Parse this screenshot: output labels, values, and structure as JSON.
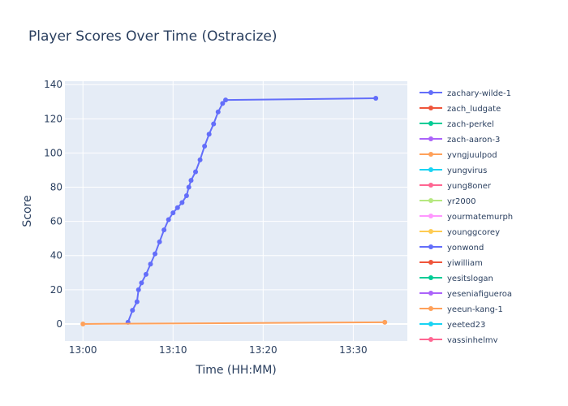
{
  "chart_data": {
    "type": "line",
    "title": "Player Scores Over Time (Ostracize)",
    "xlabel": "Time (HH:MM)",
    "ylabel": "Score",
    "xlim": [
      "12:58",
      "13:36"
    ],
    "ylim": [
      -10,
      142
    ],
    "x_ticks": [
      "13:00",
      "13:10",
      "13:20",
      "13:30"
    ],
    "y_ticks": [
      0,
      20,
      40,
      60,
      80,
      100,
      120,
      140
    ],
    "grid": true,
    "legend_position": "right",
    "series": [
      {
        "name": "zachary-wilde-1",
        "color": "#636efa",
        "x": [
          "13:05",
          "13:05:30",
          "13:06",
          "13:06:10",
          "13:06:30",
          "13:07",
          "13:07:30",
          "13:08",
          "13:08:30",
          "13:09",
          "13:09:30",
          "13:10",
          "13:10:30",
          "13:11",
          "13:11:30",
          "13:11:45",
          "13:12",
          "13:12:30",
          "13:13",
          "13:13:30",
          "13:14",
          "13:14:30",
          "13:15",
          "13:15:30",
          "13:15:50",
          "13:32:30"
        ],
        "y": [
          1,
          8,
          13,
          20,
          24,
          29,
          35,
          41,
          48,
          55,
          61,
          65,
          68,
          71,
          75,
          80,
          84,
          89,
          96,
          104,
          111,
          117,
          124,
          129,
          131,
          132
        ]
      },
      {
        "name": "zach_ludgate",
        "color": "#EF553B",
        "x": [],
        "y": []
      },
      {
        "name": "zach-perkel",
        "color": "#00cc96",
        "x": [],
        "y": []
      },
      {
        "name": "zach-aaron-3",
        "color": "#ab63fa",
        "x": [],
        "y": []
      },
      {
        "name": "yvngjuulpod",
        "color": "#FFA15A",
        "x": [
          "13:00",
          "13:33:30"
        ],
        "y": [
          0,
          1
        ]
      },
      {
        "name": "yungvirus",
        "color": "#19d3f3",
        "x": [],
        "y": []
      },
      {
        "name": "yung8oner",
        "color": "#FF6692",
        "x": [],
        "y": []
      },
      {
        "name": "yr2000",
        "color": "#B6E880",
        "x": [],
        "y": []
      },
      {
        "name": "yourmatemurph",
        "color": "#FF97FF",
        "x": [],
        "y": []
      },
      {
        "name": "younggcorey",
        "color": "#FECB52",
        "x": [],
        "y": []
      },
      {
        "name": "yonwond",
        "color": "#636efa",
        "x": [],
        "y": []
      },
      {
        "name": "yiwilliam",
        "color": "#EF553B",
        "x": [],
        "y": []
      },
      {
        "name": "yesitslogan",
        "color": "#00cc96",
        "x": [],
        "y": []
      },
      {
        "name": "yeseniafigueroa",
        "color": "#ab63fa",
        "x": [],
        "y": []
      },
      {
        "name": "yeeun-kang-1",
        "color": "#FFA15A",
        "x": [],
        "y": []
      },
      {
        "name": "yeeted23",
        "color": "#19d3f3",
        "x": [],
        "y": []
      },
      {
        "name": "yassinhelmy",
        "color": "#FF6692",
        "x": [],
        "y": []
      }
    ]
  }
}
